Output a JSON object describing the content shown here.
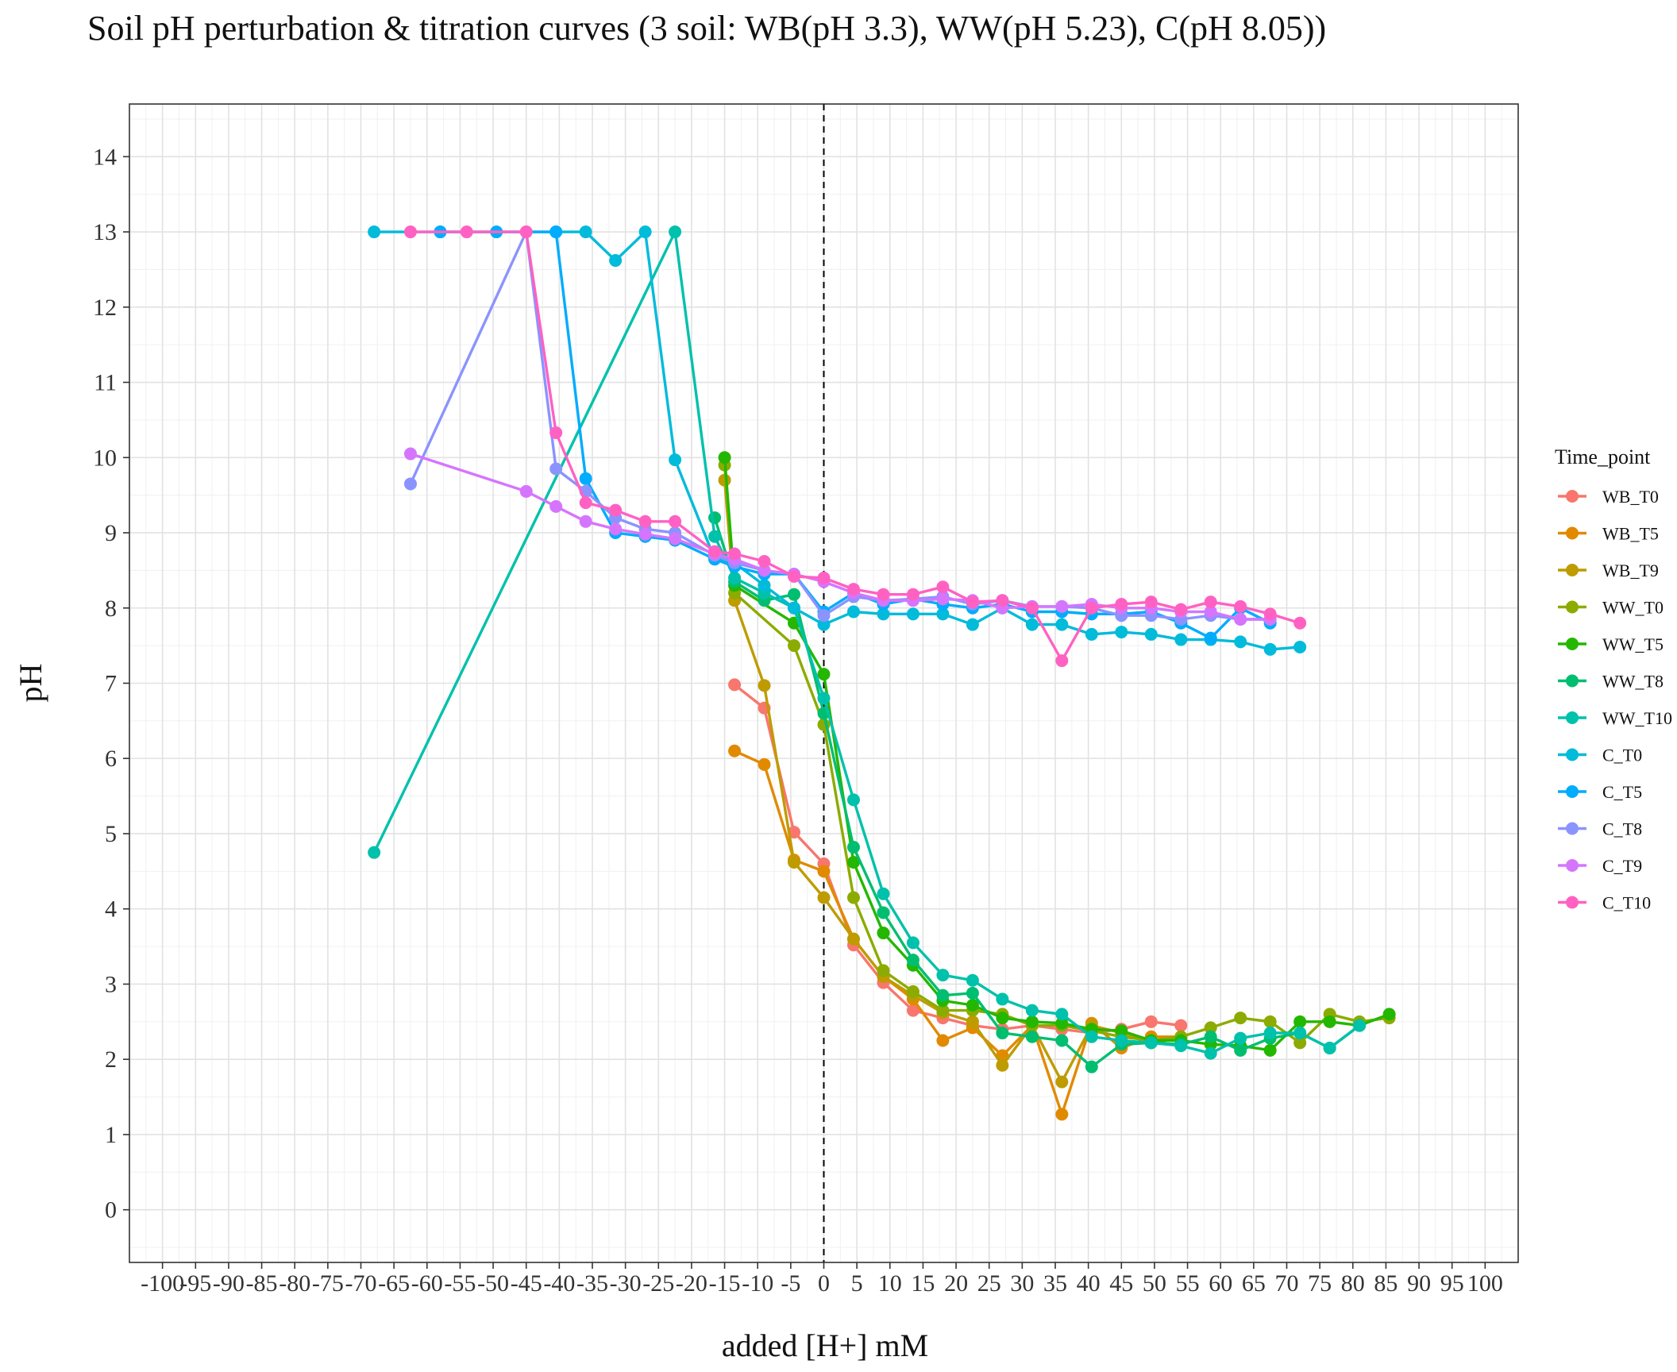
{
  "chart_data": {
    "type": "line",
    "title": "Soil pH perturbation & titration curves (3 soil: WB(pH 3.3), WW(pH 5.23), C(pH 8.05))",
    "xlabel": "added [H+] mM",
    "ylabel": "pH",
    "xlim": [
      -105,
      105
    ],
    "ylim": [
      -0.7,
      14.7
    ],
    "x_ticks": [
      -100,
      -95,
      -90,
      -85,
      -80,
      -75,
      -70,
      -65,
      -60,
      -55,
      -50,
      -45,
      -40,
      -35,
      -30,
      -25,
      -20,
      -15,
      -10,
      -5,
      0,
      5,
      10,
      15,
      20,
      25,
      30,
      35,
      40,
      45,
      50,
      55,
      60,
      65,
      70,
      75,
      80,
      85,
      90,
      95,
      100
    ],
    "y_ticks": [
      0,
      1,
      2,
      3,
      4,
      5,
      6,
      7,
      8,
      9,
      10,
      11,
      12,
      13,
      14
    ],
    "grid": true,
    "reference_line": {
      "x": 0,
      "style": "dashed"
    },
    "legend": {
      "title": "Time_point",
      "placement": "right"
    },
    "series": [
      {
        "name": "WB_T0",
        "color": "#F8766D",
        "points": [
          [
            -13.5,
            6.98
          ],
          [
            -9,
            6.67
          ],
          [
            -4.5,
            5.02
          ],
          [
            0,
            4.6
          ],
          [
            4.5,
            3.52
          ],
          [
            9,
            3.02
          ],
          [
            13.5,
            2.65
          ],
          [
            18,
            2.55
          ],
          [
            22.5,
            2.45
          ],
          [
            27,
            2.4
          ],
          [
            31.5,
            2.45
          ],
          [
            36,
            2.4
          ],
          [
            40.5,
            2.35
          ],
          [
            45,
            2.4
          ],
          [
            49.5,
            2.5
          ],
          [
            54,
            2.45
          ]
        ]
      },
      {
        "name": "WB_T5",
        "color": "#E18A00",
        "points": [
          [
            -13.5,
            6.1
          ],
          [
            -9,
            5.92
          ],
          [
            -4.5,
            4.65
          ],
          [
            0,
            4.5
          ],
          [
            4.5,
            3.6
          ],
          [
            9,
            3.1
          ],
          [
            13.5,
            2.8
          ],
          [
            18,
            2.25
          ],
          [
            22.5,
            2.42
          ],
          [
            27,
            2.05
          ],
          [
            31.5,
            2.45
          ],
          [
            36,
            1.27
          ],
          [
            40.5,
            2.48
          ],
          [
            45,
            2.15
          ],
          [
            49.5,
            2.3
          ],
          [
            54,
            2.3
          ]
        ]
      },
      {
        "name": "WB_T9",
        "color": "#BE9C00",
        "points": [
          [
            -15,
            9.7
          ],
          [
            -13.5,
            8.1
          ],
          [
            -9,
            6.97
          ],
          [
            -4.5,
            4.62
          ],
          [
            0,
            4.15
          ],
          [
            4.5,
            3.6
          ],
          [
            9,
            3.1
          ],
          [
            13.5,
            2.85
          ],
          [
            18,
            2.62
          ],
          [
            22.5,
            2.5
          ],
          [
            27,
            1.92
          ],
          [
            31.5,
            2.45
          ],
          [
            36,
            1.7
          ],
          [
            40.5,
            2.45
          ],
          [
            45,
            2.35
          ],
          [
            49.5,
            2.22
          ],
          [
            54,
            2.28
          ]
        ]
      },
      {
        "name": "WW_T0",
        "color": "#8CAB00",
        "points": [
          [
            -15,
            9.9
          ],
          [
            -13.5,
            8.2
          ],
          [
            -4.5,
            7.5
          ],
          [
            0,
            6.45
          ],
          [
            4.5,
            4.15
          ],
          [
            9,
            3.18
          ],
          [
            13.5,
            2.9
          ],
          [
            18,
            2.65
          ],
          [
            22.5,
            2.65
          ],
          [
            27,
            2.6
          ],
          [
            31.5,
            2.45
          ],
          [
            36,
            2.45
          ],
          [
            40.5,
            2.38
          ],
          [
            45,
            2.3
          ],
          [
            49.5,
            2.25
          ],
          [
            54,
            2.3
          ],
          [
            58.5,
            2.42
          ],
          [
            63,
            2.55
          ],
          [
            67.5,
            2.5
          ],
          [
            72,
            2.22
          ],
          [
            76.5,
            2.6
          ],
          [
            81,
            2.5
          ],
          [
            85.5,
            2.55
          ]
        ]
      },
      {
        "name": "WW_T5",
        "color": "#24B700",
        "points": [
          [
            -15,
            10
          ],
          [
            -13.5,
            8.3
          ],
          [
            -4.5,
            7.8
          ],
          [
            0,
            7.12
          ],
          [
            4.5,
            4.62
          ],
          [
            9,
            3.68
          ],
          [
            13.5,
            3.25
          ],
          [
            18,
            2.78
          ],
          [
            22.5,
            2.72
          ],
          [
            27,
            2.55
          ],
          [
            31.5,
            2.5
          ],
          [
            36,
            2.48
          ],
          [
            40.5,
            2.4
          ],
          [
            45,
            2.38
          ],
          [
            49.5,
            2.25
          ],
          [
            54,
            2.25
          ],
          [
            58.5,
            2.2
          ],
          [
            63,
            2.18
          ],
          [
            67.5,
            2.12
          ],
          [
            72,
            2.5
          ],
          [
            76.5,
            2.5
          ],
          [
            81,
            2.45
          ],
          [
            85.5,
            2.6
          ]
        ]
      },
      {
        "name": "WW_T8",
        "color": "#00BE70",
        "points": [
          [
            -16.5,
            9.2
          ],
          [
            -13.5,
            8.35
          ],
          [
            -9,
            8.1
          ],
          [
            -4.5,
            8.18
          ],
          [
            0,
            6.6
          ],
          [
            4.5,
            4.82
          ],
          [
            9,
            3.95
          ],
          [
            13.5,
            3.32
          ],
          [
            18,
            2.85
          ],
          [
            22.5,
            2.88
          ],
          [
            27,
            2.35
          ],
          [
            31.5,
            2.3
          ],
          [
            36,
            2.25
          ],
          [
            40.5,
            1.9
          ],
          [
            45,
            2.2
          ],
          [
            49.5,
            2.22
          ],
          [
            54,
            2.2
          ],
          [
            58.5,
            2.3
          ],
          [
            63,
            2.12
          ],
          [
            67.5,
            2.28
          ],
          [
            72,
            2.35
          ],
          [
            76.5,
            2.15
          ],
          [
            81,
            2.45
          ]
        ]
      },
      {
        "name": "WW_T10",
        "color": "#00C1AB",
        "points": [
          [
            -68,
            4.75
          ],
          [
            -22.5,
            13
          ],
          [
            -16.5,
            8.95
          ],
          [
            -13.5,
            8.4
          ],
          [
            -9,
            8.2
          ],
          [
            -4.5,
            8.0
          ],
          [
            0,
            6.8
          ],
          [
            4.5,
            5.45
          ],
          [
            9,
            4.2
          ],
          [
            13.5,
            3.55
          ],
          [
            18,
            3.12
          ],
          [
            22.5,
            3.05
          ],
          [
            27,
            2.8
          ],
          [
            31.5,
            2.65
          ],
          [
            36,
            2.6
          ],
          [
            40.5,
            2.3
          ],
          [
            45,
            2.25
          ],
          [
            49.5,
            2.22
          ],
          [
            54,
            2.18
          ],
          [
            58.5,
            2.08
          ],
          [
            63,
            2.28
          ],
          [
            67.5,
            2.35
          ],
          [
            72,
            2.35
          ],
          [
            76.5,
            2.15
          ],
          [
            81,
            2.45
          ]
        ]
      },
      {
        "name": "C_T0",
        "color": "#00BBDA",
        "points": [
          [
            -68,
            13
          ],
          [
            -58,
            13
          ],
          [
            -40.5,
            13
          ],
          [
            -36,
            13
          ],
          [
            -31.5,
            12.62
          ],
          [
            -27,
            13
          ],
          [
            -22.5,
            9.97
          ],
          [
            -16.5,
            8.65
          ],
          [
            -13.5,
            8.6
          ],
          [
            -9,
            8.3
          ],
          [
            -4.5,
            8.0
          ],
          [
            0,
            7.78
          ],
          [
            4.5,
            7.95
          ],
          [
            9,
            7.92
          ],
          [
            13.5,
            7.92
          ],
          [
            18,
            7.92
          ],
          [
            22.5,
            7.78
          ],
          [
            27,
            8.0
          ],
          [
            31.5,
            7.78
          ],
          [
            36,
            7.78
          ],
          [
            40.5,
            7.65
          ],
          [
            45,
            7.68
          ],
          [
            49.5,
            7.65
          ],
          [
            54,
            7.58
          ],
          [
            58.5,
            7.58
          ],
          [
            63,
            7.55
          ],
          [
            67.5,
            7.45
          ],
          [
            72,
            7.48
          ]
        ]
      },
      {
        "name": "C_T5",
        "color": "#00ACFC",
        "points": [
          [
            -58,
            13
          ],
          [
            -49.5,
            13
          ],
          [
            -40.5,
            13
          ],
          [
            -36,
            9.72
          ],
          [
            -31.5,
            9.0
          ],
          [
            -27,
            8.95
          ],
          [
            -22.5,
            8.9
          ],
          [
            -16.5,
            8.65
          ],
          [
            -13.5,
            8.55
          ],
          [
            -9,
            8.45
          ],
          [
            -4.5,
            8.45
          ],
          [
            0,
            7.95
          ],
          [
            4.5,
            8.2
          ],
          [
            9,
            8.05
          ],
          [
            13.5,
            8.12
          ],
          [
            18,
            8.05
          ],
          [
            22.5,
            8.0
          ],
          [
            27,
            8.05
          ],
          [
            31.5,
            7.95
          ],
          [
            36,
            7.95
          ],
          [
            40.5,
            7.92
          ],
          [
            45,
            7.92
          ],
          [
            49.5,
            7.95
          ],
          [
            54,
            7.8
          ],
          [
            58.5,
            7.6
          ],
          [
            63,
            8.0
          ],
          [
            67.5,
            7.8
          ]
        ]
      },
      {
        "name": "C_T8",
        "color": "#8B93FF",
        "points": [
          [
            -62.5,
            9.65
          ],
          [
            -45,
            13
          ],
          [
            -40.5,
            9.85
          ],
          [
            -36,
            9.55
          ],
          [
            -31.5,
            9.2
          ],
          [
            -27,
            9.05
          ],
          [
            -22.5,
            9.0
          ],
          [
            -16.5,
            8.7
          ],
          [
            -13.5,
            8.6
          ],
          [
            -9,
            8.5
          ],
          [
            -4.5,
            8.45
          ],
          [
            0,
            7.9
          ],
          [
            4.5,
            8.15
          ],
          [
            9,
            8.1
          ],
          [
            13.5,
            8.12
          ],
          [
            18,
            8.15
          ],
          [
            22.5,
            8.05
          ],
          [
            27,
            8.1
          ],
          [
            31.5,
            8.02
          ],
          [
            36,
            8.02
          ],
          [
            40.5,
            8.0
          ],
          [
            45,
            7.9
          ],
          [
            49.5,
            7.9
          ],
          [
            54,
            7.85
          ],
          [
            58.5,
            7.9
          ],
          [
            63,
            7.85
          ],
          [
            67.5,
            7.85
          ]
        ]
      },
      {
        "name": "C_T9",
        "color": "#D575FE",
        "points": [
          [
            -62.5,
            10.05
          ],
          [
            -45,
            9.55
          ],
          [
            -40.5,
            9.35
          ],
          [
            -36,
            9.15
          ],
          [
            -31.5,
            9.05
          ],
          [
            -27,
            8.98
          ],
          [
            -22.5,
            8.92
          ],
          [
            -16.5,
            8.72
          ],
          [
            -13.5,
            8.65
          ],
          [
            -9,
            8.5
          ],
          [
            -4.5,
            8.45
          ],
          [
            0,
            8.35
          ],
          [
            4.5,
            8.2
          ],
          [
            9,
            8.1
          ],
          [
            13.5,
            8.1
          ],
          [
            18,
            8.12
          ],
          [
            22.5,
            8.1
          ],
          [
            27,
            8.0
          ],
          [
            31.5,
            8.02
          ],
          [
            36,
            8.02
          ],
          [
            40.5,
            8.05
          ],
          [
            45,
            8.0
          ],
          [
            49.5,
            8.0
          ],
          [
            54,
            7.95
          ],
          [
            58.5,
            7.95
          ],
          [
            63,
            7.85
          ],
          [
            67.5,
            7.85
          ]
        ]
      },
      {
        "name": "C_T10",
        "color": "#FF61C3",
        "points": [
          [
            -62.5,
            13
          ],
          [
            -54,
            13
          ],
          [
            -45,
            13
          ],
          [
            -40.5,
            10.33
          ],
          [
            -36,
            9.4
          ],
          [
            -31.5,
            9.3
          ],
          [
            -27,
            9.15
          ],
          [
            -22.5,
            9.15
          ],
          [
            -16.5,
            8.75
          ],
          [
            -13.5,
            8.72
          ],
          [
            -9,
            8.62
          ],
          [
            -4.5,
            8.42
          ],
          [
            0,
            8.4
          ],
          [
            4.5,
            8.25
          ],
          [
            9,
            8.18
          ],
          [
            13.5,
            8.18
          ],
          [
            18,
            8.28
          ],
          [
            22.5,
            8.08
          ],
          [
            27,
            8.1
          ],
          [
            31.5,
            8.0
          ],
          [
            36,
            7.3
          ],
          [
            40.5,
            8.0
          ],
          [
            45,
            8.05
          ],
          [
            49.5,
            8.08
          ],
          [
            54,
            7.98
          ],
          [
            58.5,
            8.08
          ],
          [
            63,
            8.02
          ],
          [
            67.5,
            7.92
          ],
          [
            72,
            7.8
          ]
        ]
      }
    ]
  }
}
